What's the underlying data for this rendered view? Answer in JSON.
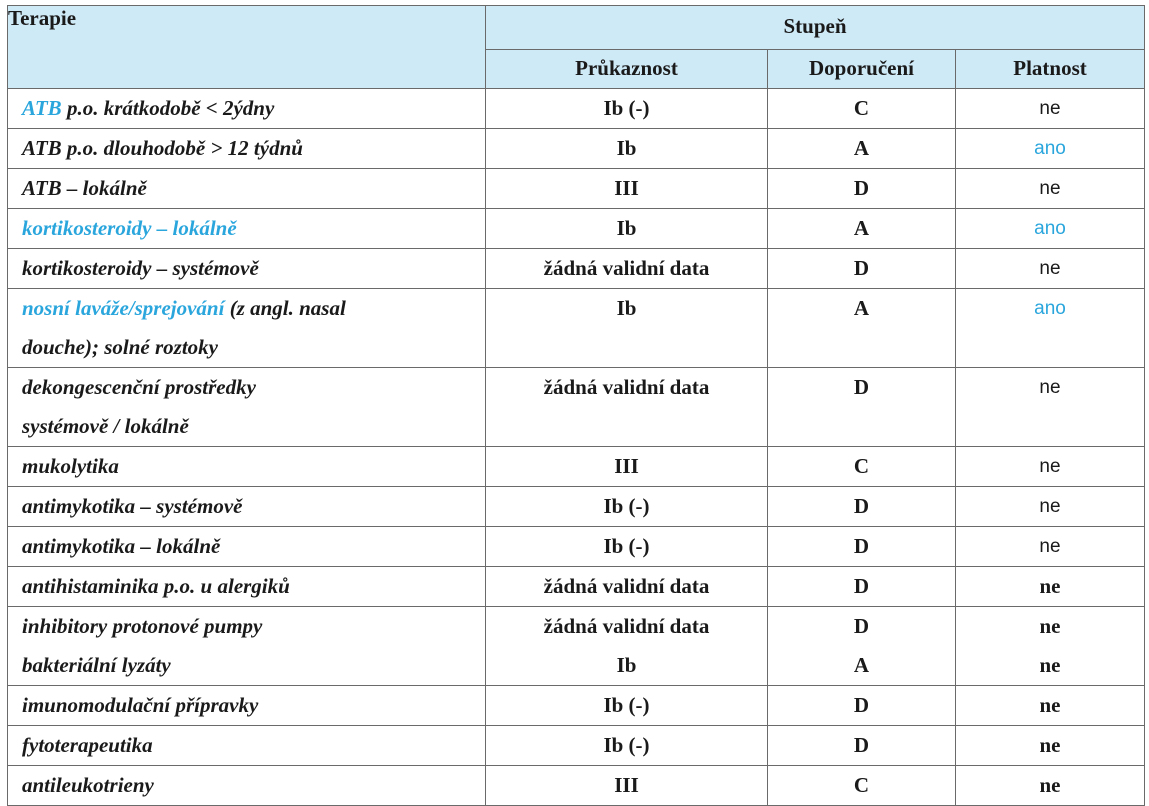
{
  "header": {
    "terapie": "Terapie",
    "stupen": "Stupeň",
    "prukaznost": "Průkaznost",
    "doporuceni": "Doporučení",
    "platnost": "Platnost"
  },
  "rows": [
    {
      "t1": "ATB",
      "t2": " p.o. krátkodobě < 2ýdny",
      "t3": "",
      "p": "Ib (-)",
      "d": "C",
      "v": "ne"
    },
    {
      "t1": "",
      "t2": "ATB p.o. dlouhodobě > 12 týdnů",
      "t3": "",
      "p": "Ib",
      "d": "A",
      "v": "ano"
    },
    {
      "t1": "",
      "t2": "ATB – lokálně",
      "t3": "",
      "p": "III",
      "d": "D",
      "v": "ne"
    },
    {
      "t1": "kortikosteroidy – lokálně",
      "t2": "",
      "t3": "",
      "p": "Ib",
      "d": "A",
      "v": "ano"
    },
    {
      "t1": "",
      "t2": "kortikosteroidy – systémově",
      "t3": "",
      "p": "žádná validní data",
      "d": "D",
      "v": "ne"
    },
    {
      "t1": "nosní laváže/sprejování",
      "t2": " (z angl. nasal",
      "t3": "douche); solné roztoky",
      "p": "Ib",
      "d": "A",
      "v": "ano"
    },
    {
      "t1": "",
      "t2": "dekongescenční prostředky",
      "t3": "systémově / lokálně",
      "p": "žádná validní data",
      "d": "D",
      "v": "ne"
    },
    {
      "t1": "",
      "t2": "mukolytika",
      "t3": "",
      "p": "III",
      "d": "C",
      "v": "ne"
    },
    {
      "t1": "",
      "t2": "antimykotika – systémově",
      "t3": "",
      "p": "Ib (-)",
      "d": "D",
      "v": "ne"
    },
    {
      "t1": "",
      "t2": "antimykotika – lokálně",
      "t3": "",
      "p": "Ib (-)",
      "d": "D",
      "v": "ne"
    },
    {
      "t1": "",
      "t2": "antihistaminika p.o. u alergiků",
      "t3": "",
      "p": "žádná validní data",
      "d": "D",
      "v": "ne"
    },
    {
      "t1": "",
      "t2": "inhibitory protonové pumpy",
      "t3": "bakteriální lyzáty",
      "p": "žádná validní data",
      "p2": "Ib",
      "d": "D",
      "d2": "A",
      "v": "ne",
      "v2": "ne"
    },
    {
      "t1": "",
      "t2": "imunomodulační přípravky",
      "t3": "",
      "p": "Ib (-)",
      "d": "D",
      "v": "ne"
    },
    {
      "t1": "",
      "t2": "fytoterapeutika",
      "t3": "",
      "p": "Ib (-)",
      "d": "D",
      "v": "ne"
    },
    {
      "t1": "",
      "t2": "antileukotrieny",
      "t3": "",
      "p": "III",
      "d": "C",
      "v": "ne"
    }
  ],
  "colors": {
    "accent": "#2aa6dd",
    "header_bg": "#cfeaf7"
  }
}
